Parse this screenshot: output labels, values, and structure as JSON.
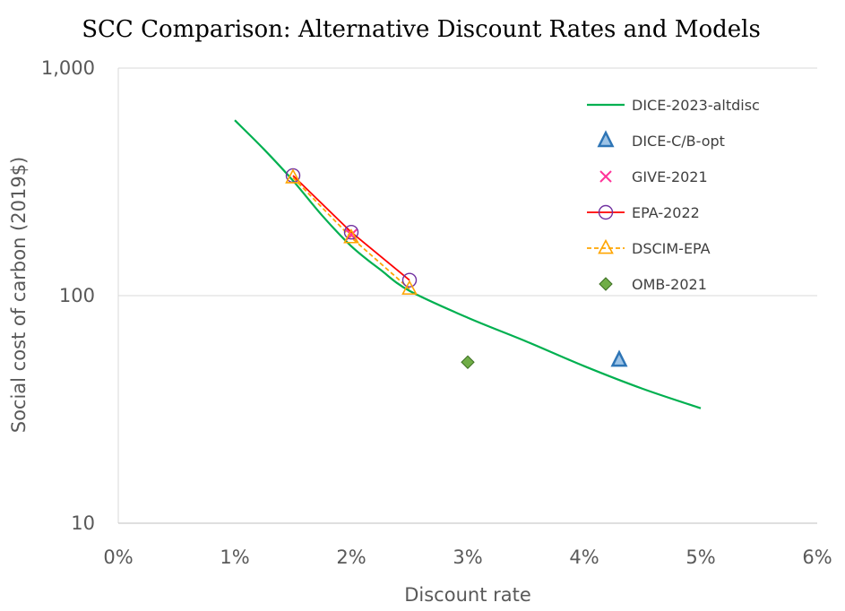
{
  "chart_data": {
    "type": "scatter",
    "title": "SCC Comparison: Alternative Discount Rates and Models",
    "xlabel": "Discount rate",
    "ylabel": "Social cost of carbon (2019$)",
    "xlim": [
      0,
      0.06
    ],
    "ylim": [
      10,
      1000
    ],
    "yscale": "log",
    "x_ticks": [
      0,
      0.01,
      0.02,
      0.03,
      0.04,
      0.05,
      0.06
    ],
    "x_tick_labels": [
      "0%",
      "1%",
      "2%",
      "3%",
      "4%",
      "5%",
      "6%"
    ],
    "y_ticks": [
      10,
      100,
      1000
    ],
    "y_tick_labels": [
      "10",
      "100",
      "1,000"
    ],
    "grid": "horizontal",
    "legend_position": "top-right",
    "series": [
      {
        "name": "DICE-2023-altdisc",
        "style": "line",
        "color": "#00B050",
        "points": [
          [
            0.01,
            590
          ],
          [
            0.0125,
            440
          ],
          [
            0.015,
            320
          ],
          [
            0.0175,
            225
          ],
          [
            0.02,
            165
          ],
          [
            0.0225,
            130
          ],
          [
            0.025,
            105
          ],
          [
            0.03,
            80
          ],
          [
            0.035,
            63
          ],
          [
            0.04,
            49
          ],
          [
            0.045,
            39
          ],
          [
            0.05,
            32
          ]
        ]
      },
      {
        "name": "DICE-C/B-opt",
        "style": "marker",
        "marker": "triangle",
        "color": "#2E75B6",
        "points": [
          [
            0.043,
            52
          ]
        ]
      },
      {
        "name": "GIVE-2021",
        "style": "marker",
        "marker": "x",
        "color": "#FF3399",
        "points": [
          [
            0.02,
            185
          ]
        ]
      },
      {
        "name": "EPA-2022",
        "style": "line-marker",
        "marker": "circle",
        "color": "#FF0000",
        "marker_color": "#7030A0",
        "points": [
          [
            0.015,
            337
          ],
          [
            0.02,
            190
          ],
          [
            0.025,
            117
          ]
        ]
      },
      {
        "name": "DSCIM-EPA",
        "style": "dashed-line-marker",
        "marker": "triangle-open",
        "color": "#FFA500",
        "points": [
          [
            0.015,
            330
          ],
          [
            0.02,
            180
          ],
          [
            0.025,
            107
          ]
        ]
      },
      {
        "name": "OMB-2021",
        "style": "marker",
        "marker": "diamond",
        "color": "#70AD47",
        "points": [
          [
            0.03,
            51
          ]
        ]
      }
    ]
  }
}
